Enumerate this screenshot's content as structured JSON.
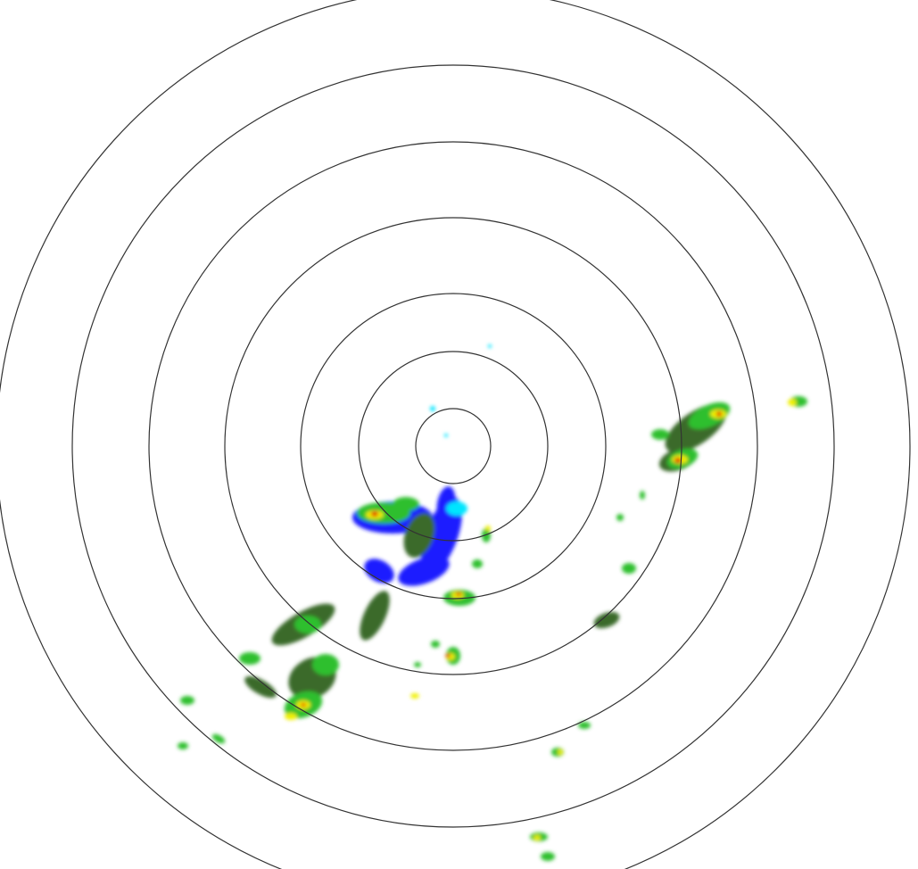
{
  "radar": {
    "ring_color": "#333333",
    "palette": {
      "light": "#00e5ff",
      "weak": "#1a1aff",
      "moderate_low": "#3a6a2a",
      "moderate": "#2fbf2f",
      "strong": "#f0f000",
      "intense": "#ff8000",
      "extreme": "#e00000"
    }
  }
}
